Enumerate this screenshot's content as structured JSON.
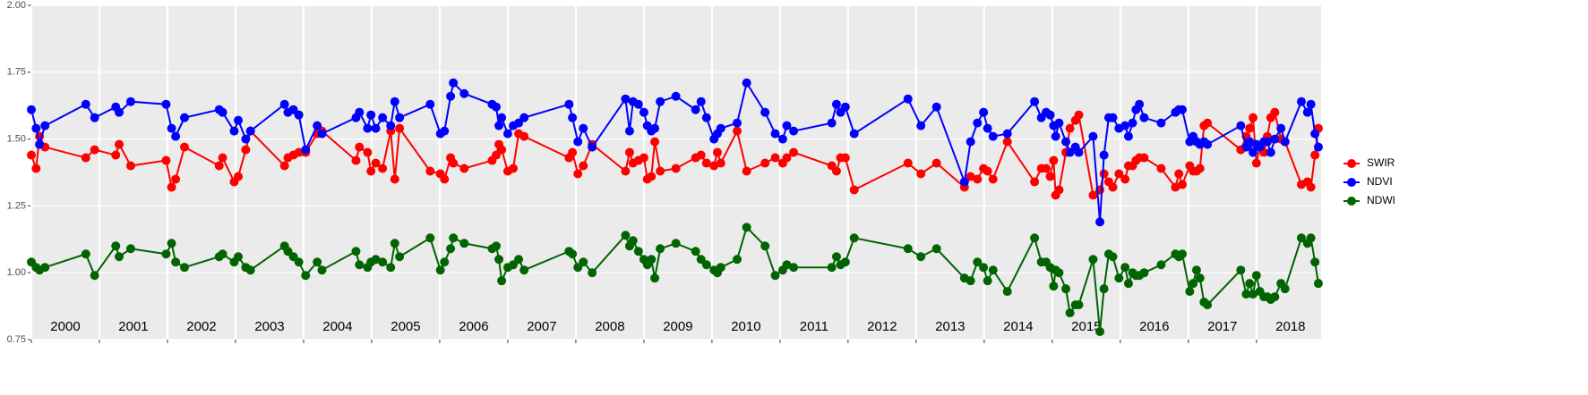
{
  "chart_data": {
    "type": "line",
    "x": [
      2000.0,
      2000.07,
      2000.12,
      2000.2,
      2000.8,
      2000.93,
      2001.24,
      2001.29,
      2001.46,
      2001.98,
      2002.06,
      2002.12,
      2002.25,
      2002.76,
      2002.81,
      2002.98,
      2003.04,
      2003.15,
      2003.22,
      2003.72,
      2003.77,
      2003.85,
      2003.93,
      2004.03,
      2004.2,
      2004.27,
      2004.77,
      2004.82,
      2004.94,
      2004.99,
      2005.06,
      2005.16,
      2005.28,
      2005.34,
      2005.41,
      2005.86,
      2006.01,
      2006.07,
      2006.16,
      2006.2,
      2006.36,
      2006.77,
      2006.83,
      2006.87,
      2006.91,
      2007.0,
      2007.08,
      2007.16,
      2007.24,
      2007.9,
      2007.95,
      2008.03,
      2008.11,
      2008.24,
      2008.73,
      2008.79,
      2008.84,
      2008.92,
      2009.0,
      2009.05,
      2009.11,
      2009.16,
      2009.24,
      2009.47,
      2009.76,
      2009.84,
      2009.92,
      2010.03,
      2010.08,
      2010.13,
      2010.37,
      2010.51,
      2010.78,
      2010.93,
      2011.04,
      2011.1,
      2011.2,
      2011.76,
      2011.83,
      2011.89,
      2011.96,
      2012.09,
      2012.88,
      2013.07,
      2013.3,
      2013.71,
      2013.8,
      2013.9,
      2013.99,
      2014.05,
      2014.13,
      2014.34,
      2014.74,
      2014.84,
      2014.91,
      2014.97,
      2015.02,
      2015.05,
      2015.1,
      2015.2,
      2015.26,
      2015.34,
      2015.39,
      2015.6,
      2015.7,
      2015.76,
      2015.83,
      2015.89,
      2015.98,
      2016.07,
      2016.12,
      2016.18,
      2016.23,
      2016.28,
      2016.35,
      2016.6,
      2016.81,
      2016.86,
      2016.91,
      2017.02,
      2017.07,
      2017.12,
      2017.17,
      2017.23,
      2017.28,
      2017.77,
      2017.85,
      2017.9,
      2017.95,
      2018.0,
      2018.05,
      2018.11,
      2018.16,
      2018.21,
      2018.27,
      2018.36,
      2018.42,
      2018.66,
      2018.75,
      2018.8,
      2018.86,
      2018.91
    ],
    "series": [
      {
        "name": "SWIR",
        "color": "#ff0000",
        "values": [
          1.44,
          1.39,
          1.51,
          1.47,
          1.43,
          1.46,
          1.44,
          1.48,
          1.4,
          1.42,
          1.32,
          1.35,
          1.47,
          1.4,
          1.43,
          1.34,
          1.36,
          1.46,
          1.53,
          1.4,
          1.43,
          1.44,
          1.45,
          1.45,
          1.52,
          1.53,
          1.42,
          1.47,
          1.45,
          1.38,
          1.41,
          1.39,
          1.53,
          1.35,
          1.54,
          1.38,
          1.37,
          1.35,
          1.43,
          1.41,
          1.39,
          1.42,
          1.44,
          1.48,
          1.46,
          1.38,
          1.39,
          1.52,
          1.51,
          1.43,
          1.45,
          1.37,
          1.4,
          1.48,
          1.38,
          1.45,
          1.41,
          1.42,
          1.43,
          1.35,
          1.36,
          1.49,
          1.38,
          1.39,
          1.43,
          1.44,
          1.41,
          1.4,
          1.45,
          1.41,
          1.53,
          1.38,
          1.41,
          1.43,
          1.41,
          1.43,
          1.45,
          1.4,
          1.38,
          1.43,
          1.43,
          1.31,
          1.41,
          1.37,
          1.41,
          1.32,
          1.36,
          1.35,
          1.39,
          1.38,
          1.35,
          1.49,
          1.34,
          1.39,
          1.39,
          1.36,
          1.42,
          1.29,
          1.31,
          1.45,
          1.54,
          1.57,
          1.59,
          1.29,
          1.31,
          1.37,
          1.34,
          1.32,
          1.37,
          1.35,
          1.4,
          1.4,
          1.42,
          1.43,
          1.43,
          1.39,
          1.32,
          1.37,
          1.33,
          1.4,
          1.38,
          1.38,
          1.39,
          1.55,
          1.56,
          1.46,
          1.51,
          1.54,
          1.58,
          1.41,
          1.47,
          1.45,
          1.51,
          1.58,
          1.6,
          1.5,
          1.49,
          1.33,
          1.34,
          1.32,
          1.44,
          1.54
        ]
      },
      {
        "name": "NDVI",
        "color": "#0000ff",
        "values": [
          1.61,
          1.54,
          1.48,
          1.55,
          1.63,
          1.58,
          1.62,
          1.6,
          1.64,
          1.63,
          1.54,
          1.51,
          1.58,
          1.61,
          1.6,
          1.53,
          1.57,
          1.5,
          1.53,
          1.63,
          1.6,
          1.61,
          1.59,
          1.46,
          1.55,
          1.52,
          1.58,
          1.6,
          1.54,
          1.59,
          1.54,
          1.58,
          1.55,
          1.64,
          1.58,
          1.63,
          1.52,
          1.53,
          1.66,
          1.71,
          1.67,
          1.63,
          1.62,
          1.55,
          1.58,
          1.52,
          1.55,
          1.56,
          1.58,
          1.63,
          1.58,
          1.49,
          1.54,
          1.47,
          1.65,
          1.53,
          1.64,
          1.63,
          1.6,
          1.55,
          1.53,
          1.54,
          1.64,
          1.66,
          1.61,
          1.64,
          1.58,
          1.5,
          1.52,
          1.54,
          1.56,
          1.71,
          1.6,
          1.52,
          1.5,
          1.55,
          1.53,
          1.56,
          1.63,
          1.6,
          1.62,
          1.52,
          1.65,
          1.55,
          1.62,
          1.34,
          1.49,
          1.56,
          1.6,
          1.54,
          1.51,
          1.52,
          1.64,
          1.58,
          1.6,
          1.59,
          1.55,
          1.51,
          1.56,
          1.49,
          1.45,
          1.47,
          1.45,
          1.51,
          1.19,
          1.44,
          1.58,
          1.58,
          1.54,
          1.55,
          1.51,
          1.56,
          1.61,
          1.63,
          1.58,
          1.56,
          1.6,
          1.61,
          1.61,
          1.49,
          1.51,
          1.49,
          1.48,
          1.49,
          1.48,
          1.55,
          1.47,
          1.49,
          1.45,
          1.48,
          1.47,
          1.49,
          1.49,
          1.45,
          1.5,
          1.54,
          1.49,
          1.64,
          1.6,
          1.63,
          1.52,
          1.47
        ]
      },
      {
        "name": "NDWI",
        "color": "#006400",
        "values": [
          1.04,
          1.02,
          1.01,
          1.02,
          1.07,
          0.99,
          1.1,
          1.06,
          1.09,
          1.07,
          1.11,
          1.04,
          1.02,
          1.06,
          1.07,
          1.04,
          1.06,
          1.02,
          1.01,
          1.1,
          1.08,
          1.06,
          1.04,
          0.99,
          1.04,
          1.01,
          1.08,
          1.03,
          1.02,
          1.04,
          1.05,
          1.04,
          1.02,
          1.11,
          1.06,
          1.13,
          1.01,
          1.04,
          1.09,
          1.13,
          1.11,
          1.09,
          1.1,
          1.05,
          0.97,
          1.02,
          1.03,
          1.05,
          1.01,
          1.08,
          1.07,
          1.02,
          1.04,
          1.0,
          1.14,
          1.1,
          1.12,
          1.08,
          1.05,
          1.03,
          1.05,
          0.98,
          1.09,
          1.11,
          1.08,
          1.05,
          1.03,
          1.01,
          1.0,
          1.02,
          1.05,
          1.17,
          1.1,
          0.99,
          1.01,
          1.03,
          1.02,
          1.02,
          1.06,
          1.03,
          1.04,
          1.13,
          1.09,
          1.06,
          1.09,
          0.98,
          0.97,
          1.04,
          1.02,
          0.97,
          1.01,
          0.93,
          1.13,
          1.04,
          1.04,
          1.02,
          0.95,
          1.01,
          1.0,
          0.94,
          0.85,
          0.88,
          0.88,
          1.05,
          0.78,
          0.94,
          1.07,
          1.06,
          0.98,
          1.02,
          0.96,
          1.0,
          0.99,
          0.99,
          1.0,
          1.03,
          1.07,
          1.06,
          1.07,
          0.93,
          0.96,
          1.01,
          0.98,
          0.89,
          0.88,
          1.01,
          0.92,
          0.96,
          0.92,
          0.99,
          0.93,
          0.91,
          0.91,
          0.9,
          0.91,
          0.96,
          0.94,
          1.13,
          1.11,
          1.13,
          1.04,
          0.96
        ]
      }
    ],
    "xlim": [
      2000,
      2018.95
    ],
    "xticks": [
      2000,
      2001,
      2002,
      2003,
      2004,
      2005,
      2006,
      2007,
      2008,
      2009,
      2010,
      2011,
      2012,
      2013,
      2014,
      2015,
      2016,
      2017,
      2018
    ],
    "ylim": [
      0.75,
      2.0
    ],
    "yticks": [
      {
        "value": 0.75,
        "label": "0.75"
      },
      {
        "value": 1.0,
        "label": "1.00"
      },
      {
        "value": 1.25,
        "label": "1.25"
      },
      {
        "value": 1.5,
        "label": "1.50"
      },
      {
        "value": 1.75,
        "label": "1.75"
      },
      {
        "value": 2.0,
        "label": "2.00"
      }
    ],
    "grid": true,
    "legend": "right"
  }
}
